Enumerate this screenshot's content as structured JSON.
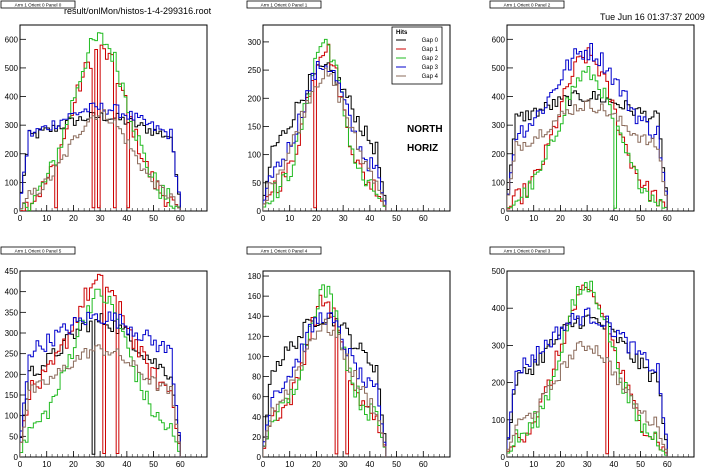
{
  "header": {
    "file_path": "result/onlMon/histos-1-4-299316.root",
    "timestamp": "Tue Jun 16 01:37:37 2009"
  },
  "annotations": {
    "north": "NORTH",
    "horiz": "HORIZ"
  },
  "legend": {
    "title": "Hits",
    "entries": [
      "Gap 0",
      "Gap 1",
      "Gap 2",
      "Gap 3",
      "Gap 4"
    ]
  },
  "series_colors": [
    "#000000",
    "#cc0000",
    "#22bb22",
    "#0000cc",
    "#8b6b5b"
  ],
  "chart_data": [
    {
      "type": "line",
      "title": "Arm 1 Orient 0 Panel 0",
      "xlim": [
        0,
        70
      ],
      "ylim": [
        0,
        650
      ],
      "xticks": [
        0,
        10,
        20,
        30,
        40,
        50,
        60
      ],
      "yticks": [
        0,
        100,
        200,
        300,
        400,
        500,
        600
      ],
      "nbins": 60,
      "grid": false,
      "series": [
        {
          "name": "Gap 0",
          "peak": 330,
          "base": 240,
          "width": 0.8,
          "range": [
            0,
            60
          ]
        },
        {
          "name": "Gap 1",
          "peak": 560,
          "base": 10,
          "width": 0.55,
          "range": [
            0,
            60
          ],
          "dips": [
            13,
            27,
            29,
            35,
            40
          ]
        },
        {
          "name": "Gap 2",
          "peak": 600,
          "base": 10,
          "width": 0.55,
          "range": [
            0,
            60
          ]
        },
        {
          "name": "Gap 3",
          "peak": 360,
          "base": 240,
          "width": 0.8,
          "range": [
            0,
            60
          ]
        },
        {
          "name": "Gap 4",
          "peak": 340,
          "base": 30,
          "width": 0.6,
          "range": [
            0,
            60
          ]
        }
      ]
    },
    {
      "type": "line",
      "title": "Arm 1 Orient 0 Panel 1",
      "xlim": [
        0,
        70
      ],
      "ylim": [
        0,
        330
      ],
      "xticks": [
        0,
        10,
        20,
        30,
        40,
        50,
        60
      ],
      "yticks": [
        0,
        50,
        100,
        150,
        200,
        250,
        300
      ],
      "nbins": 46,
      "grid": false,
      "legend": true,
      "series": [
        {
          "name": "Gap 0",
          "peak": 250,
          "base": 80,
          "width": 0.7,
          "range": [
            0,
            46
          ]
        },
        {
          "name": "Gap 1",
          "peak": 290,
          "base": 40,
          "width": 0.45,
          "range": [
            0,
            46
          ],
          "dips": [
            19
          ]
        },
        {
          "name": "Gap 2",
          "peak": 300,
          "base": 30,
          "width": 0.45,
          "range": [
            0,
            46
          ]
        },
        {
          "name": "Gap 3",
          "peak": 260,
          "base": 60,
          "width": 0.55,
          "range": [
            0,
            46
          ]
        },
        {
          "name": "Gap 4",
          "peak": 240,
          "base": 40,
          "width": 0.6,
          "range": [
            0,
            46
          ]
        }
      ]
    },
    {
      "type": "line",
      "title": "Arm 1 Orient 0 Panel 2",
      "xlim": [
        0,
        70
      ],
      "ylim": [
        0,
        650
      ],
      "xticks": [
        0,
        10,
        20,
        30,
        40,
        50,
        60
      ],
      "yticks": [
        0,
        100,
        200,
        300,
        400,
        500,
        600
      ],
      "nbins": 60,
      "grid": false,
      "series": [
        {
          "name": "Gap 0",
          "peak": 400,
          "base": 300,
          "width": 0.8,
          "range": [
            0,
            60
          ]
        },
        {
          "name": "Gap 1",
          "peak": 540,
          "base": 20,
          "width": 0.55,
          "range": [
            0,
            60
          ]
        },
        {
          "name": "Gap 2",
          "peak": 480,
          "base": 20,
          "width": 0.55,
          "range": [
            0,
            60
          ],
          "dips": [
            40
          ]
        },
        {
          "name": "Gap 3",
          "peak": 560,
          "base": 250,
          "width": 0.6,
          "range": [
            0,
            60
          ]
        },
        {
          "name": "Gap 4",
          "peak": 370,
          "base": 200,
          "width": 0.7,
          "range": [
            0,
            60
          ]
        }
      ]
    },
    {
      "type": "line",
      "title": "Arm 1 Orient 0 Panel 5",
      "xlim": [
        0,
        70
      ],
      "ylim": [
        0,
        450
      ],
      "xticks": [
        0,
        10,
        20,
        30,
        40,
        50,
        60
      ],
      "yticks": [
        0,
        50,
        100,
        150,
        200,
        250,
        300,
        350,
        400,
        450
      ],
      "nbins": 60,
      "grid": false,
      "series": [
        {
          "name": "Gap 0",
          "peak": 330,
          "base": 180,
          "width": 0.7,
          "range": [
            0,
            60
          ],
          "dips": [
            27
          ]
        },
        {
          "name": "Gap 1",
          "peak": 420,
          "base": 150,
          "width": 0.55,
          "range": [
            0,
            60
          ],
          "dips": [
            31,
            36
          ]
        },
        {
          "name": "Gap 2",
          "peak": 390,
          "base": 50,
          "width": 0.55,
          "range": [
            0,
            60
          ]
        },
        {
          "name": "Gap 3",
          "peak": 340,
          "base": 230,
          "width": 0.8,
          "range": [
            0,
            60
          ]
        },
        {
          "name": "Gap 4",
          "peak": 260,
          "base": 140,
          "width": 0.7,
          "range": [
            0,
            60
          ]
        }
      ]
    },
    {
      "type": "line",
      "title": "Arm 1 Orient 0 Panel 4",
      "xlim": [
        0,
        70
      ],
      "ylim": [
        0,
        185
      ],
      "xticks": [
        0,
        10,
        20,
        30,
        40,
        50,
        60
      ],
      "yticks": [
        0,
        20,
        40,
        60,
        80,
        100,
        120,
        140,
        160,
        180
      ],
      "nbins": 46,
      "grid": false,
      "series": [
        {
          "name": "Gap 0",
          "peak": 140,
          "base": 80,
          "width": 0.7,
          "range": [
            0,
            46
          ]
        },
        {
          "name": "Gap 1",
          "peak": 155,
          "base": 40,
          "width": 0.45,
          "range": [
            0,
            46
          ],
          "dips": [
            27,
            31
          ]
        },
        {
          "name": "Gap 2",
          "peak": 165,
          "base": 40,
          "width": 0.45,
          "range": [
            0,
            46
          ]
        },
        {
          "name": "Gap 3",
          "peak": 140,
          "base": 60,
          "width": 0.55,
          "range": [
            0,
            46
          ]
        },
        {
          "name": "Gap 4",
          "peak": 130,
          "base": 40,
          "width": 0.6,
          "range": [
            0,
            46
          ]
        }
      ]
    },
    {
      "type": "line",
      "title": "Arm 1 Orient 0 Panel 3",
      "xlim": [
        0,
        70
      ],
      "ylim": [
        0,
        500
      ],
      "xticks": [
        0,
        10,
        20,
        30,
        40,
        50,
        60
      ],
      "yticks": [
        0,
        100,
        200,
        300,
        400,
        500
      ],
      "nbins": 60,
      "grid": false,
      "series": [
        {
          "name": "Gap 0",
          "peak": 370,
          "base": 170,
          "width": 0.75,
          "range": [
            0,
            60
          ]
        },
        {
          "name": "Gap 1",
          "peak": 440,
          "base": 30,
          "width": 0.55,
          "range": [
            0,
            60
          ],
          "dips": [
            37
          ]
        },
        {
          "name": "Gap 2",
          "peak": 460,
          "base": 40,
          "width": 0.5,
          "range": [
            0,
            60
          ]
        },
        {
          "name": "Gap 3",
          "peak": 380,
          "base": 200,
          "width": 0.75,
          "range": [
            0,
            60
          ]
        },
        {
          "name": "Gap 4",
          "peak": 300,
          "base": 70,
          "width": 0.6,
          "range": [
            0,
            60
          ]
        }
      ]
    }
  ]
}
